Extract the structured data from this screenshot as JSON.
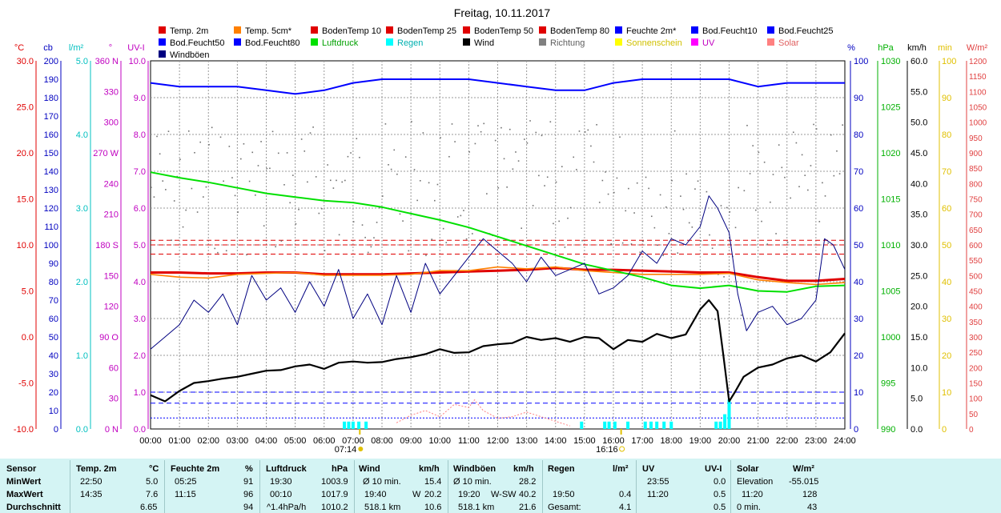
{
  "chart_data": {
    "type": "line",
    "title": "Freitag, 10.11.2017",
    "x_ticks": [
      "00:00",
      "01:00",
      "02:00",
      "03:00",
      "04:00",
      "05:00",
      "06:00",
      "07:00",
      "08:00",
      "09:00",
      "10:00",
      "11:00",
      "12:00",
      "13:00",
      "14:00",
      "15:00",
      "16:00",
      "17:00",
      "18:00",
      "19:00",
      "20:00",
      "21:00",
      "22:00",
      "23:00",
      "24:00"
    ],
    "sunrise": "07:14",
    "sunset": "16:16",
    "grid": true,
    "legend_position": "top",
    "legend": [
      {
        "name": "Temp. 2m",
        "color": "#e00000"
      },
      {
        "name": "Temp. 5cm*",
        "color": "#ff8000"
      },
      {
        "name": "BodenTemp 10",
        "color": "#e00000"
      },
      {
        "name": "BodenTemp 25",
        "color": "#e00000"
      },
      {
        "name": "BodenTemp 50",
        "color": "#e00000"
      },
      {
        "name": "BodenTemp 80",
        "color": "#e00000"
      },
      {
        "name": "Feuchte 2m*",
        "color": "#0000ff"
      },
      {
        "name": "Bod.Feucht10",
        "color": "#0000ff"
      },
      {
        "name": "Bod.Feucht25",
        "color": "#0000ff"
      },
      {
        "name": "Bod.Feucht50",
        "color": "#0000ff"
      },
      {
        "name": "Bod.Feucht80",
        "color": "#0000ff"
      },
      {
        "name": "Luftdruck",
        "color": "#00e000"
      },
      {
        "name": "Regen",
        "color": "#00ffff"
      },
      {
        "name": "Wind",
        "color": "#000000"
      },
      {
        "name": "Richtung",
        "color": "#808080"
      },
      {
        "name": "Sonnenschein",
        "color": "#ffff00"
      },
      {
        "name": "UV",
        "color": "#ff00ff"
      },
      {
        "name": "Solar",
        "color": "#ff8080"
      },
      {
        "name": "Windböen",
        "color": "#000080"
      }
    ],
    "left_axes": [
      {
        "unit": "°C",
        "color": "#e00000",
        "ticks": [
          "30.0",
          "25.0",
          "20.0",
          "15.0",
          "10.0",
          "5.0",
          "0.0",
          "-5.0",
          "-10.0"
        ]
      },
      {
        "unit": "cb",
        "color": "#0000c0",
        "ticks": [
          "200",
          "190",
          "180",
          "170",
          "160",
          "150",
          "140",
          "130",
          "120",
          "110",
          "100",
          "90",
          "80",
          "70",
          "60",
          "50",
          "40",
          "30",
          "20",
          "10",
          "0"
        ]
      },
      {
        "unit": "l/m²",
        "color": "#00c0c0",
        "ticks": [
          "5.0",
          "4.0",
          "3.0",
          "2.0",
          "1.0",
          "0.0"
        ]
      },
      {
        "unit": "°",
        "color": "#c000c0",
        "ticks": [
          "360 N",
          "330",
          "300",
          "270 W",
          "240",
          "210",
          "180 S",
          "150",
          "120",
          "90 O",
          "60",
          "30",
          "0 N"
        ]
      },
      {
        "unit": "UV-I",
        "color": "#c000c0",
        "ticks": [
          "10.0",
          "9.0",
          "8.0",
          "7.0",
          "6.0",
          "5.0",
          "4.0",
          "3.0",
          "2.0",
          "1.0",
          "0.0"
        ]
      }
    ],
    "right_axes": [
      {
        "unit": "%",
        "color": "#0000c0",
        "ticks": [
          "100",
          "90",
          "80",
          "70",
          "60",
          "50",
          "40",
          "30",
          "20",
          "10",
          "0"
        ]
      },
      {
        "unit": "hPa",
        "color": "#00b000",
        "ticks": [
          "1030",
          "1025",
          "1020",
          "1015",
          "1010",
          "1005",
          "1000",
          "995",
          "990"
        ]
      },
      {
        "unit": "km/h",
        "color": "#000000",
        "ticks": [
          "60.0",
          "55.0",
          "50.0",
          "45.0",
          "40.0",
          "35.0",
          "30.0",
          "25.0",
          "20.0",
          "15.0",
          "10.0",
          "5.0",
          "0.0"
        ]
      },
      {
        "unit": "min",
        "color": "#e0c000",
        "ticks": [
          "100",
          "90",
          "80",
          "70",
          "60",
          "50",
          "40",
          "30",
          "20",
          "10",
          "0"
        ]
      },
      {
        "unit": "W/m²",
        "color": "#e04040",
        "ticks": [
          "1200",
          "1150",
          "1100",
          "1050",
          "1000",
          "950",
          "900",
          "850",
          "800",
          "750",
          "700",
          "650",
          "600",
          "550",
          "500",
          "450",
          "400",
          "350",
          "300",
          "250",
          "200",
          "150",
          "100",
          "50",
          "0"
        ]
      }
    ],
    "series": [
      {
        "name": "Temp. 2m",
        "axis": "°C",
        "color": "#e00000",
        "x": [
          0,
          1,
          2,
          3,
          4,
          5,
          6,
          7,
          8,
          9,
          10,
          11,
          12,
          13,
          14,
          15,
          16,
          17,
          18,
          19,
          20,
          21,
          22,
          23,
          24
        ],
        "y": [
          7.0,
          7.0,
          6.9,
          6.9,
          7.0,
          7.0,
          6.8,
          6.8,
          6.8,
          6.9,
          7.0,
          7.1,
          7.2,
          7.3,
          7.5,
          7.3,
          7.3,
          7.2,
          7.1,
          7.0,
          7.0,
          6.5,
          6.1,
          6.1,
          6.3
        ]
      },
      {
        "name": "Temp. 5cm*",
        "axis": "°C",
        "color": "#ff8000",
        "x": [
          0,
          1,
          2,
          3,
          4,
          5,
          6,
          7,
          8,
          9,
          10,
          11,
          12,
          13,
          14,
          15,
          16,
          17,
          18,
          19,
          20,
          21,
          22,
          23,
          24
        ],
        "y": [
          6.8,
          6.5,
          6.4,
          6.8,
          6.9,
          7.0,
          6.7,
          6.7,
          6.7,
          6.8,
          7.2,
          7.2,
          7.6,
          7.4,
          7.6,
          7.2,
          7.0,
          6.8,
          6.8,
          6.8,
          6.9,
          6.2,
          5.9,
          5.7,
          5.9
        ]
      },
      {
        "name": "Luftdruck",
        "axis": "hPa",
        "color": "#00e000",
        "x": [
          0,
          1,
          2,
          3,
          4,
          5,
          6,
          7,
          8,
          9,
          10,
          11,
          12,
          13,
          14,
          15,
          16,
          17,
          18,
          19,
          20,
          21,
          22,
          23,
          24
        ],
        "y": [
          1017.9,
          1017.3,
          1016.8,
          1016.2,
          1015.6,
          1015.2,
          1014.8,
          1014.6,
          1014.1,
          1013.4,
          1012.7,
          1011.9,
          1010.9,
          1009.9,
          1008.9,
          1007.9,
          1007.2,
          1006.5,
          1005.6,
          1005.3,
          1005.6,
          1005.0,
          1004.9,
          1005.5,
          1005.6
        ]
      },
      {
        "name": "Feuchte 2m*",
        "axis": "%",
        "color": "#0000ff",
        "x": [
          0,
          1,
          2,
          3,
          4,
          5,
          6,
          7,
          8,
          9,
          10,
          11,
          12,
          13,
          14,
          15,
          16,
          17,
          18,
          19,
          20,
          21,
          22,
          23,
          24
        ],
        "y": [
          94,
          93,
          93,
          93,
          92,
          91,
          92,
          94,
          95,
          95,
          95,
          95,
          94,
          93,
          92,
          92,
          94,
          95,
          95,
          95,
          95,
          93,
          94,
          94,
          94
        ]
      },
      {
        "name": "Windböen",
        "axis": "km/h",
        "color": "#000080",
        "x": [
          0,
          0.5,
          1,
          1.5,
          2,
          2.5,
          3,
          3.5,
          4,
          4.5,
          5,
          5.5,
          6,
          6.5,
          7,
          7.5,
          8,
          8.5,
          9,
          9.5,
          10,
          10.5,
          11,
          11.5,
          12,
          12.5,
          13,
          13.5,
          14,
          14.5,
          15,
          15.5,
          16,
          16.5,
          17,
          17.5,
          18,
          18.5,
          19,
          19.3,
          19.6,
          20,
          20.3,
          20.6,
          21,
          21.5,
          22,
          22.5,
          23,
          23.3,
          23.6,
          24
        ],
        "y": [
          13,
          15,
          17,
          21,
          19,
          22,
          17,
          25,
          21,
          23,
          19,
          24,
          20,
          26,
          18,
          22,
          17,
          25,
          19,
          27,
          22,
          25,
          28,
          31,
          29,
          27,
          24,
          28,
          25,
          26,
          27,
          22,
          23,
          25,
          29,
          27,
          31,
          30,
          33,
          38,
          36,
          32,
          22,
          16,
          19,
          20,
          17,
          18,
          21,
          31,
          30,
          26
        ]
      },
      {
        "name": "Wind",
        "axis": "km/h",
        "color": "#000000",
        "x": [
          0,
          0.5,
          1,
          1.5,
          2,
          2.5,
          3,
          3.5,
          4,
          4.5,
          5,
          5.5,
          6,
          6.5,
          7,
          7.5,
          8,
          8.5,
          9,
          9.5,
          10,
          10.5,
          11,
          11.5,
          12,
          12.5,
          13,
          13.5,
          14,
          14.5,
          15,
          15.5,
          16,
          16.5,
          17,
          17.5,
          18,
          18.5,
          19,
          19.3,
          19.6,
          19.8,
          20,
          20.2,
          20.5,
          21,
          21.5,
          22,
          22.5,
          23,
          23.5,
          24
        ],
        "y": [
          5.5,
          4.5,
          6.2,
          7.5,
          7.8,
          8.2,
          8.5,
          9.0,
          9.5,
          9.6,
          10.2,
          10.5,
          9.8,
          10.8,
          11.0,
          10.8,
          10.9,
          11.4,
          11.7,
          12.2,
          13.0,
          12.4,
          12.5,
          13.5,
          13.8,
          14.0,
          15.0,
          14.5,
          14.8,
          14.2,
          15.0,
          14.8,
          13.0,
          14.5,
          14.2,
          15.5,
          14.8,
          15.4,
          19.5,
          21.0,
          19.2,
          12.0,
          4.5,
          6.0,
          8.5,
          10.0,
          10.5,
          11.5,
          12.0,
          11.0,
          12.5,
          15.6
        ]
      },
      {
        "name": "Solar",
        "axis": "W/m²",
        "color": "#ff8080",
        "x": [
          8.5,
          9,
          9.5,
          10,
          10.5,
          11,
          11.2,
          11.5,
          12,
          12.5,
          13,
          13.5,
          14,
          14.5
        ],
        "y": [
          20,
          45,
          60,
          40,
          80,
          70,
          95,
          60,
          35,
          40,
          55,
          40,
          25,
          10
        ]
      }
    ],
    "regen_bars": {
      "axis": "l/m²",
      "color": "#00ffff",
      "x": [
        6.7,
        6.85,
        7.0,
        7.2,
        7.45,
        14.9,
        15.7,
        15.85,
        16.05,
        16.5,
        17.1,
        17.3,
        17.5,
        17.75,
        18.0,
        19.55,
        19.7,
        19.85,
        20.0
      ],
      "y": [
        0.1,
        0.1,
        0.1,
        0.1,
        0.1,
        0.1,
        0.1,
        0.1,
        0.1,
        0.1,
        0.1,
        0.1,
        0.1,
        0.1,
        0.1,
        0.1,
        0.1,
        0.2,
        0.4
      ]
    },
    "reference_lines": [
      {
        "axis": "°C",
        "y": 10.0,
        "color": "#e00000",
        "style": "dashed"
      },
      {
        "axis": "°C",
        "y": 10.5,
        "color": "#e00000",
        "style": "dashed"
      },
      {
        "axis": "°C",
        "y": 9.0,
        "color": "#e00000",
        "style": "dashed"
      },
      {
        "axis": "%",
        "y": 10,
        "color": "#0000ff",
        "style": "dashed"
      },
      {
        "axis": "%",
        "y": 7,
        "color": "#0000ff",
        "style": "dashed"
      },
      {
        "axis": "%",
        "y": 3,
        "color": "#0000ff",
        "style": "dotted"
      }
    ]
  },
  "stats_table": {
    "rows": [
      "Sensor",
      "MinWert",
      "MaxWert",
      "Durchschnitt"
    ],
    "temp": {
      "header": "Temp. 2m",
      "unit": "°C",
      "min_time": "22:50",
      "min": "5.0",
      "max_time": "14:35",
      "max": "7.6",
      "avg": "6.65"
    },
    "feuchte": {
      "header": "Feuchte 2m",
      "unit": "%",
      "min_time": "05:25",
      "min": "91",
      "max_time": "11:15",
      "max": "96",
      "avg": "94"
    },
    "luftdruck": {
      "header": "Luftdruck",
      "unit": "hPa",
      "min_time": "19:30",
      "min": "1003.9",
      "max_time": "00:10",
      "max": "1017.9",
      "avg_label": "^1.4hPa/h",
      "avg": "1010.2"
    },
    "wind": {
      "header": "Wind",
      "unit": "km/h",
      "min_label": "Ø 10 min.",
      "min": "15.4",
      "max_time": "19:40",
      "max_label": "W",
      "max": "20.2",
      "avg_label": "518.1 km",
      "avg": "10.6"
    },
    "windboeen": {
      "header": "Windböen",
      "unit": "km/h",
      "min_label": "Ø 10 min.",
      "min": "28.2",
      "max_time": "19:20",
      "max_label": "W-SW",
      "max": "40.2",
      "avg_label": "518.1 km",
      "avg": "21.6"
    },
    "regen": {
      "header": "Regen",
      "unit": "l/m²",
      "max_time": "19:50",
      "max": "0.4",
      "avg_label": "Gesamt:",
      "avg": "4.1"
    },
    "uv": {
      "header": "UV",
      "unit": "UV-I",
      "min_time": "23:55",
      "min": "0.0",
      "max_time": "11:20",
      "max": "0.5",
      "avg": "0.5"
    },
    "solar": {
      "header": "Solar",
      "unit": "W/m²",
      "min_label": "Elevation",
      "min": "-55.015",
      "max_time": "11:20",
      "max": "128",
      "avg_label": "0 min.",
      "avg": "43"
    }
  }
}
